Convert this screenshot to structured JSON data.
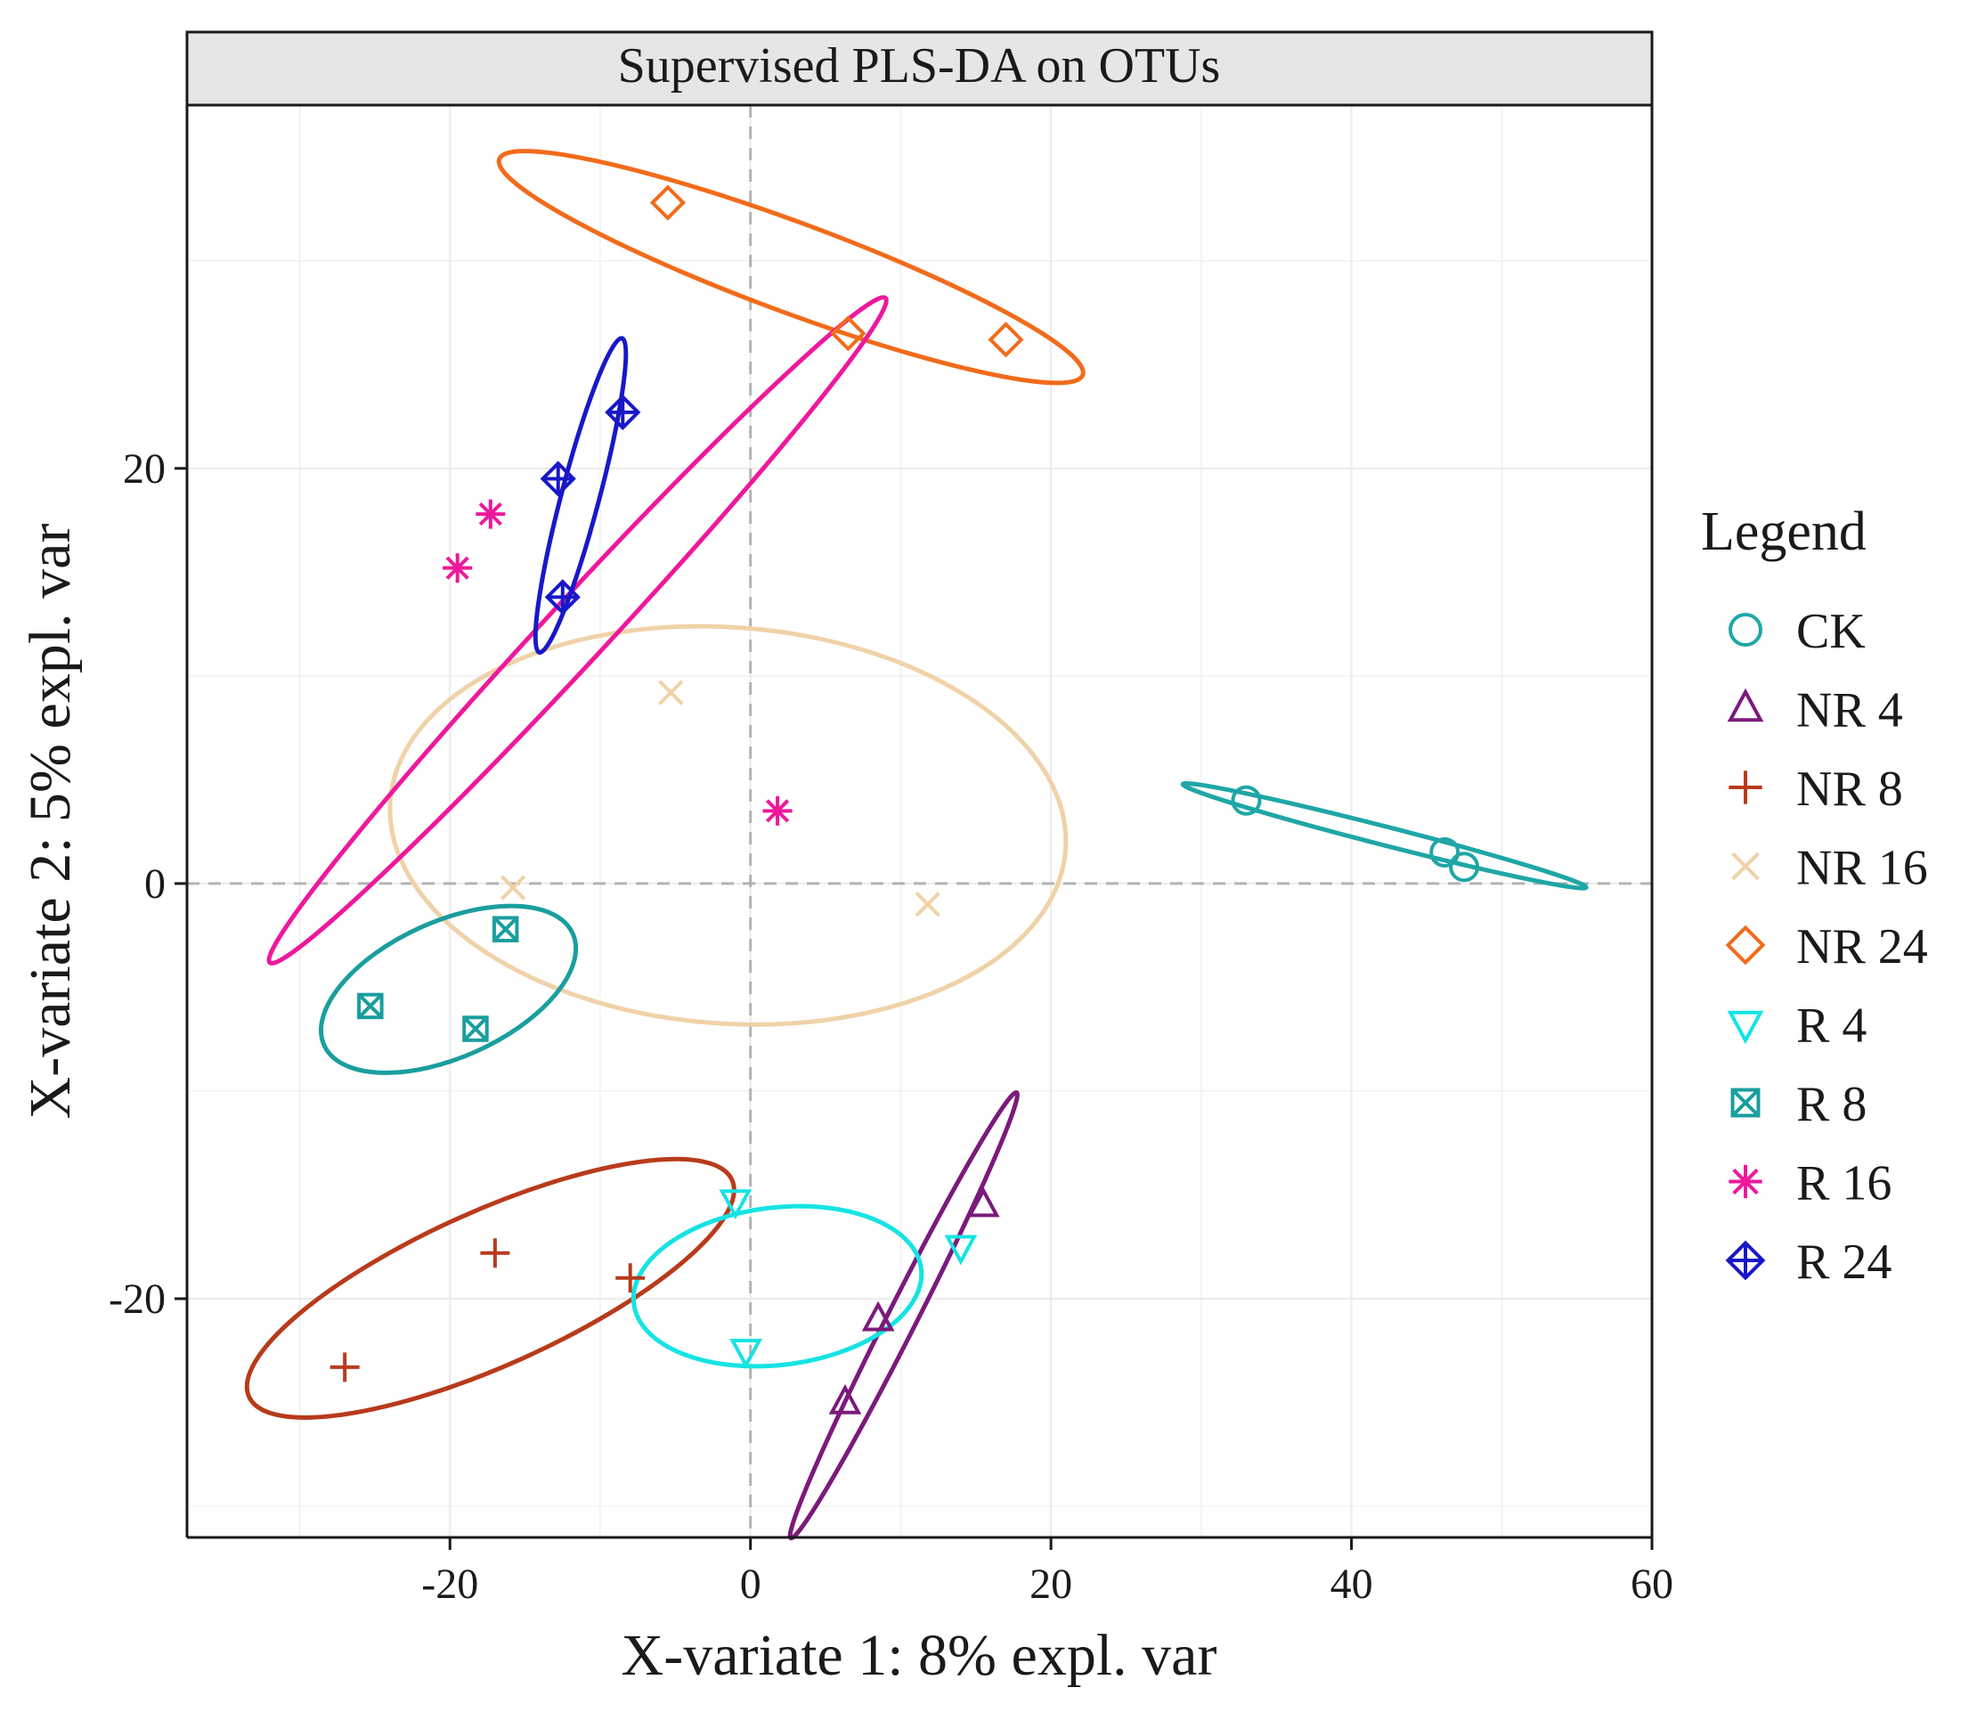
{
  "chart_data": {
    "type": "scatter",
    "title": "Supervised PLS-DA on OTUs",
    "xlabel": "X-variate 1: 8% expl. var",
    "ylabel": "X-variate 2: 5% expl. var",
    "xlim": [
      -37.5,
      60
    ],
    "ylim": [
      -31.5,
      37.5
    ],
    "xticks": [
      -20,
      0,
      20,
      40,
      60
    ],
    "yticks": [
      -20,
      0,
      20
    ],
    "grid": true,
    "reference_lines": {
      "x": 0,
      "y": 0
    },
    "legend": {
      "title": "Legend",
      "placement": "right"
    },
    "series": [
      {
        "name": "CK",
        "marker": "circle",
        "color": "#1fa6a6",
        "points": [
          [
            33,
            4
          ],
          [
            46.2,
            1.5
          ],
          [
            47.5,
            0.8
          ]
        ],
        "ellipse": {
          "cx": 42.2,
          "cy": 2.3,
          "rx": 13.65,
          "ry": 0.45,
          "angle_deg": -10.5
        }
      },
      {
        "name": "NR 4",
        "marker": "triangle-up",
        "color": "#7b1a7b",
        "points": [
          [
            8.5,
            -21
          ],
          [
            6.3,
            -25
          ],
          [
            15.5,
            -15.5
          ]
        ],
        "ellipse": {
          "cx": 10.2,
          "cy": -20.8,
          "rx": 13.1,
          "ry": 0.85,
          "angle_deg": 55
        }
      },
      {
        "name": "NR 8",
        "marker": "plus",
        "color": "#b83a1b",
        "points": [
          [
            -17,
            -17.8
          ],
          [
            -27,
            -23.3
          ],
          [
            -8,
            -19
          ]
        ],
        "ellipse": {
          "cx": -17.3,
          "cy": -19.5,
          "rx": 16.9,
          "ry": 3.8,
          "angle_deg": 18
        }
      },
      {
        "name": "NR 16",
        "marker": "cross",
        "color": "#f0d2a8",
        "points": [
          [
            -5.3,
            9.2
          ],
          [
            11.8,
            -1
          ],
          [
            -15.8,
            -0.2
          ]
        ],
        "ellipse": {
          "cx": -1.5,
          "cy": 2.8,
          "rx": 22.5,
          "ry": 9.55,
          "angle_deg": -3
        }
      },
      {
        "name": "NR 24",
        "marker": "diamond",
        "color": "#f26b1a",
        "points": [
          [
            -5.5,
            32.8
          ],
          [
            6.5,
            26.5
          ],
          [
            17,
            26.2
          ]
        ],
        "ellipse": {
          "cx": 2.7,
          "cy": 29.7,
          "rx": 20.1,
          "ry": 2.2,
          "angle_deg": -15
        }
      },
      {
        "name": "R 4",
        "marker": "triangle-down",
        "color": "#16e3e3",
        "points": [
          [
            -1,
            -15.3
          ],
          [
            -0.3,
            -22.5
          ],
          [
            14,
            -17.5
          ]
        ],
        "ellipse": {
          "cx": 1.8,
          "cy": -19.4,
          "rx": 9.6,
          "ry": 3.8,
          "angle_deg": 5
        }
      },
      {
        "name": "R 8",
        "marker": "square-x",
        "color": "#1a9e9e",
        "points": [
          [
            -16.3,
            -2.2
          ],
          [
            -25.3,
            -5.9
          ],
          [
            -18.3,
            -7
          ]
        ],
        "ellipse": {
          "cx": -20.1,
          "cy": -5.1,
          "rx": 8.7,
          "ry": 3.35,
          "angle_deg": 18
        }
      },
      {
        "name": "R 16",
        "marker": "asterisk",
        "color": "#ee189c",
        "points": [
          [
            -17.3,
            17.8
          ],
          [
            -19.5,
            15.2
          ],
          [
            1.8,
            3.5
          ]
        ],
        "ellipse": {
          "cx": -11.5,
          "cy": 12.2,
          "rx": 26.0,
          "ry": 1.65,
          "angle_deg": 38
        }
      },
      {
        "name": "R 24",
        "marker": "diamond-plus",
        "color": "#1818c8",
        "points": [
          [
            -8.5,
            22.7
          ],
          [
            -12.8,
            19.5
          ],
          [
            -12.5,
            13.8
          ]
        ],
        "ellipse": {
          "cx": -11.3,
          "cy": 18.7,
          "rx": 8.05,
          "ry": 1.2,
          "angle_deg": 70
        }
      }
    ]
  }
}
